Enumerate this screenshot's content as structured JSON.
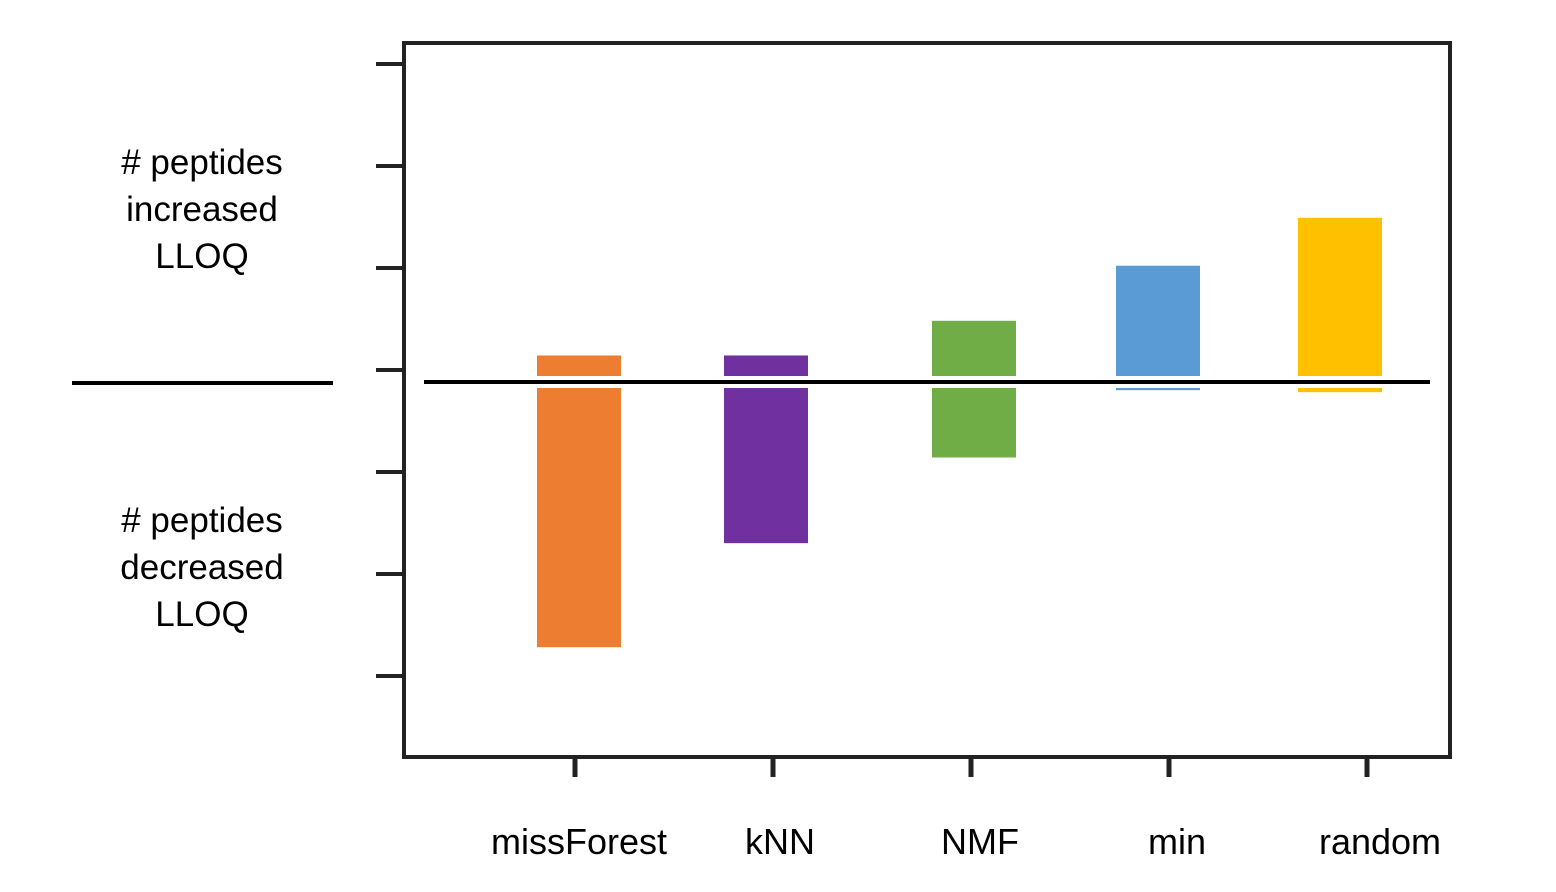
{
  "side_labels": {
    "increased": [
      "# peptides",
      "increased",
      "LLOQ"
    ],
    "decreased": [
      "# peptides",
      "decreased",
      "LLOQ"
    ]
  },
  "chart_data": {
    "type": "bar",
    "categories": [
      "missForest",
      "kNN",
      "NMF",
      "min",
      "random"
    ],
    "increased": [
      0.26,
      0.26,
      0.6,
      1.14,
      1.61
    ],
    "decreased": [
      -2.6,
      -1.58,
      -0.74,
      -0.08,
      -0.1
    ],
    "ylim": [
      -3.8,
      3.2
    ],
    "yticks": [
      -3,
      -2,
      -1,
      0,
      1,
      2,
      3
    ],
    "colors": [
      "#ED7D31",
      "#7030A0",
      "#70AD47",
      "#5B9BD5",
      "#FFC000"
    ],
    "grid": false,
    "legend": "none"
  }
}
